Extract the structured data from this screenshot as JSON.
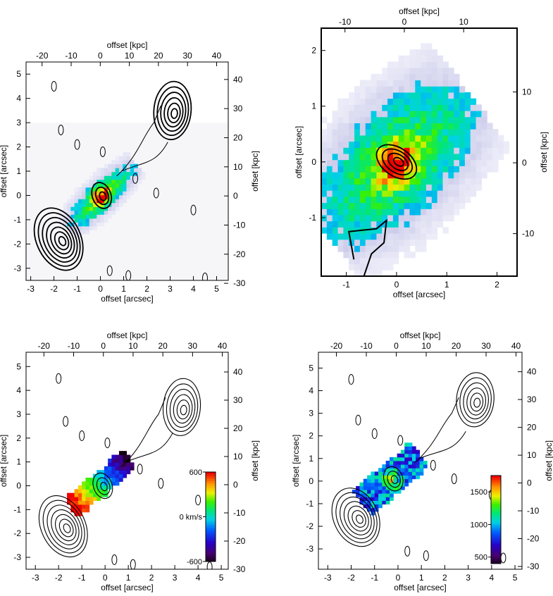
{
  "chart_data": [
    {
      "type": "heatmap",
      "panel": "top-left",
      "xlabel": "offset [arcsec]",
      "ylabel": "offset [arcsec]",
      "x2label": "offset [kpc]",
      "y2label": "offset [kpc]",
      "xlim": [
        -3.2,
        5.5
      ],
      "ylim": [
        -3.5,
        5.5
      ],
      "x2lim": [
        -25.5,
        44
      ],
      "y2lim": [
        -29,
        46
      ],
      "xticks": [
        -3,
        -2,
        -1,
        0,
        1,
        2,
        3,
        4,
        5
      ],
      "yticks": [
        -3,
        -2,
        -1,
        0,
        1,
        2,
        3,
        4,
        5
      ],
      "x2ticks": [
        -20,
        -10,
        0,
        10,
        20,
        30,
        40
      ],
      "y2ticks": [
        -30,
        -20,
        -10,
        0,
        10,
        20,
        30,
        40
      ],
      "contour_sources": [
        {
          "x": -1.8,
          "y": -1.8,
          "rx": 0.95,
          "ry": 1.35,
          "rot": -25,
          "levels": 7
        },
        {
          "x": 3.1,
          "y": 3.5,
          "rx": 0.8,
          "ry": 1.2,
          "rot": 5,
          "levels": 6
        },
        {
          "x": 0.05,
          "y": 0.0,
          "rx": 0.4,
          "ry": 0.55,
          "rot": -20,
          "levels": 3
        }
      ],
      "emission_peak": {
        "x": 0.05,
        "y": 0.0
      },
      "emission_angle_deg": 42
    },
    {
      "type": "heatmap",
      "panel": "top-right",
      "xlabel": "offset [arcsec]",
      "ylabel": "offset [arcsec]",
      "x2label": "offset [kpc]",
      "y2label": "offset [kpc]",
      "xlim": [
        -1.5,
        2.4
      ],
      "ylim": [
        -2.05,
        2.4
      ],
      "x2lim": [
        -14,
        19
      ],
      "y2lim": [
        -16,
        19
      ],
      "xticks": [
        -1,
        0,
        1,
        2
      ],
      "yticks": [
        -1,
        0,
        1,
        2
      ],
      "x2ticks": [
        -10,
        0,
        10
      ],
      "y2ticks": [
        -10,
        0,
        10
      ],
      "contour_sources": [
        {
          "x": 0.0,
          "y": 0.0,
          "rx": 0.28,
          "ry": 0.4,
          "rot": -55,
          "levels": 4
        }
      ],
      "emission_peak": {
        "x": 0.0,
        "y": 0.0
      },
      "emission_angle_deg": 40
    },
    {
      "type": "heatmap",
      "panel": "bottom-left",
      "xlabel": "offset [arcsec]",
      "ylabel": "offset [arcsec]",
      "x2label": "offset [kpc]",
      "y2label": "offset [kpc]",
      "xlim": [
        -3.4,
        5.3
      ],
      "ylim": [
        -3.5,
        5.6
      ],
      "x2lim": [
        -26,
        42
      ],
      "y2lim": [
        -30,
        47
      ],
      "xticks": [
        -3,
        -2,
        -1,
        0,
        1,
        2,
        3,
        4,
        5
      ],
      "yticks": [
        -3,
        -2,
        -1,
        0,
        1,
        2,
        3,
        4,
        5
      ],
      "x2ticks": [
        -20,
        -10,
        0,
        10,
        20,
        30,
        40
      ],
      "y2ticks": [
        -30,
        -20,
        -10,
        0,
        10,
        20,
        30,
        40
      ],
      "colorbar": {
        "labels": [
          "600",
          "0 km/s",
          "-600"
        ],
        "vmin": -600,
        "vmax": 600
      },
      "contour_sources": [
        {
          "x": -1.8,
          "y": -1.7,
          "rx": 0.95,
          "ry": 1.35,
          "rot": -25,
          "levels": 7
        },
        {
          "x": 3.3,
          "y": 3.3,
          "rx": 0.8,
          "ry": 1.2,
          "rot": 5,
          "levels": 6
        },
        {
          "x": -0.1,
          "y": 0.0,
          "rx": 0.4,
          "ry": 0.55,
          "rot": -20,
          "levels": 3
        }
      ],
      "emission_peak": {
        "x": -0.2,
        "y": 0.1
      },
      "emission_angle_deg": 40
    },
    {
      "type": "heatmap",
      "panel": "bottom-right",
      "xlabel": "offset [arcsec]",
      "ylabel": "offset [arcsec]",
      "x2label": "offset [kpc]",
      "y2label": "offset [kpc]",
      "xlim": [
        -3.4,
        5.3
      ],
      "ylim": [
        -3.9,
        5.7
      ],
      "x2lim": [
        -26,
        42
      ],
      "y2lim": [
        -31,
        47
      ],
      "xticks": [
        -3,
        -2,
        -1,
        0,
        1,
        2,
        3,
        4,
        5
      ],
      "yticks": [
        -3,
        -2,
        -1,
        0,
        1,
        2,
        3,
        4,
        5
      ],
      "x2ticks": [
        -20,
        -10,
        0,
        10,
        20,
        30,
        40
      ],
      "y2ticks": [
        -30,
        -20,
        -10,
        0,
        10,
        20,
        30,
        40
      ],
      "colorbar": {
        "labels": [
          "1500",
          "1000",
          "500"
        ],
        "vmin": 400,
        "vmax": 1750
      },
      "contour_sources": [
        {
          "x": -1.8,
          "y": -1.6,
          "rx": 0.95,
          "ry": 1.35,
          "rot": -25,
          "levels": 7
        },
        {
          "x": 3.3,
          "y": 3.6,
          "rx": 0.8,
          "ry": 1.2,
          "rot": 5,
          "levels": 6
        },
        {
          "x": -0.2,
          "y": 0.1,
          "rx": 0.4,
          "ry": 0.55,
          "rot": -20,
          "levels": 3
        }
      ],
      "emission_peak": {
        "x": -0.3,
        "y": 0.1
      },
      "emission_angle_deg": 40
    }
  ]
}
